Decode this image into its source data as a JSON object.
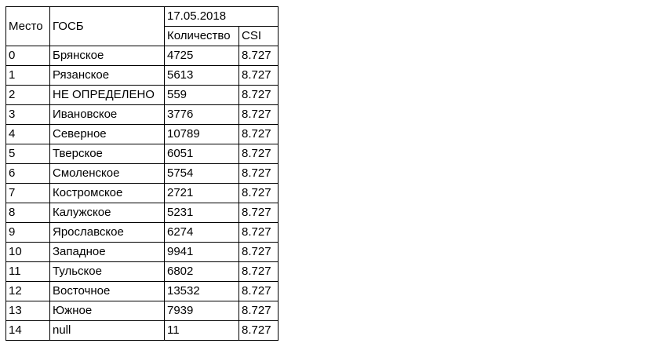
{
  "table": {
    "headers": {
      "place": "Место",
      "gosb": "ГОСБ",
      "date": "17.05.2018",
      "count": "Количество",
      "csi": "CSI"
    },
    "rows": [
      {
        "place": "0",
        "gosb": "Брянское",
        "count": "4725",
        "csi": "8.727"
      },
      {
        "place": "1",
        "gosb": "Рязанское",
        "count": "5613",
        "csi": "8.727"
      },
      {
        "place": "2",
        "gosb": "НЕ ОПРЕДЕЛЕНО",
        "count": "559",
        "csi": "8.727"
      },
      {
        "place": "3",
        "gosb": "Ивановское",
        "count": "3776",
        "csi": "8.727"
      },
      {
        "place": "4",
        "gosb": "Северное",
        "count": "10789",
        "csi": "8.727"
      },
      {
        "place": "5",
        "gosb": "Тверское",
        "count": "6051",
        "csi": "8.727"
      },
      {
        "place": "6",
        "gosb": "Смоленское",
        "count": "5754",
        "csi": "8.727"
      },
      {
        "place": "7",
        "gosb": "Костромское",
        "count": "2721",
        "csi": "8.727"
      },
      {
        "place": "8",
        "gosb": "Калужское",
        "count": "5231",
        "csi": "8.727"
      },
      {
        "place": "9",
        "gosb": "Ярославское",
        "count": "6274",
        "csi": "8.727"
      },
      {
        "place": "10",
        "gosb": "Западное",
        "count": "9941",
        "csi": "8.727"
      },
      {
        "place": "11",
        "gosb": "Тульское",
        "count": "6802",
        "csi": "8.727"
      },
      {
        "place": "12",
        "gosb": "Восточное",
        "count": "13532",
        "csi": "8.727"
      },
      {
        "place": "13",
        "gosb": "Южное",
        "count": "7939",
        "csi": "8.727"
      },
      {
        "place": "14",
        "gosb": "null",
        "count": "11",
        "csi": "8.727"
      }
    ]
  }
}
